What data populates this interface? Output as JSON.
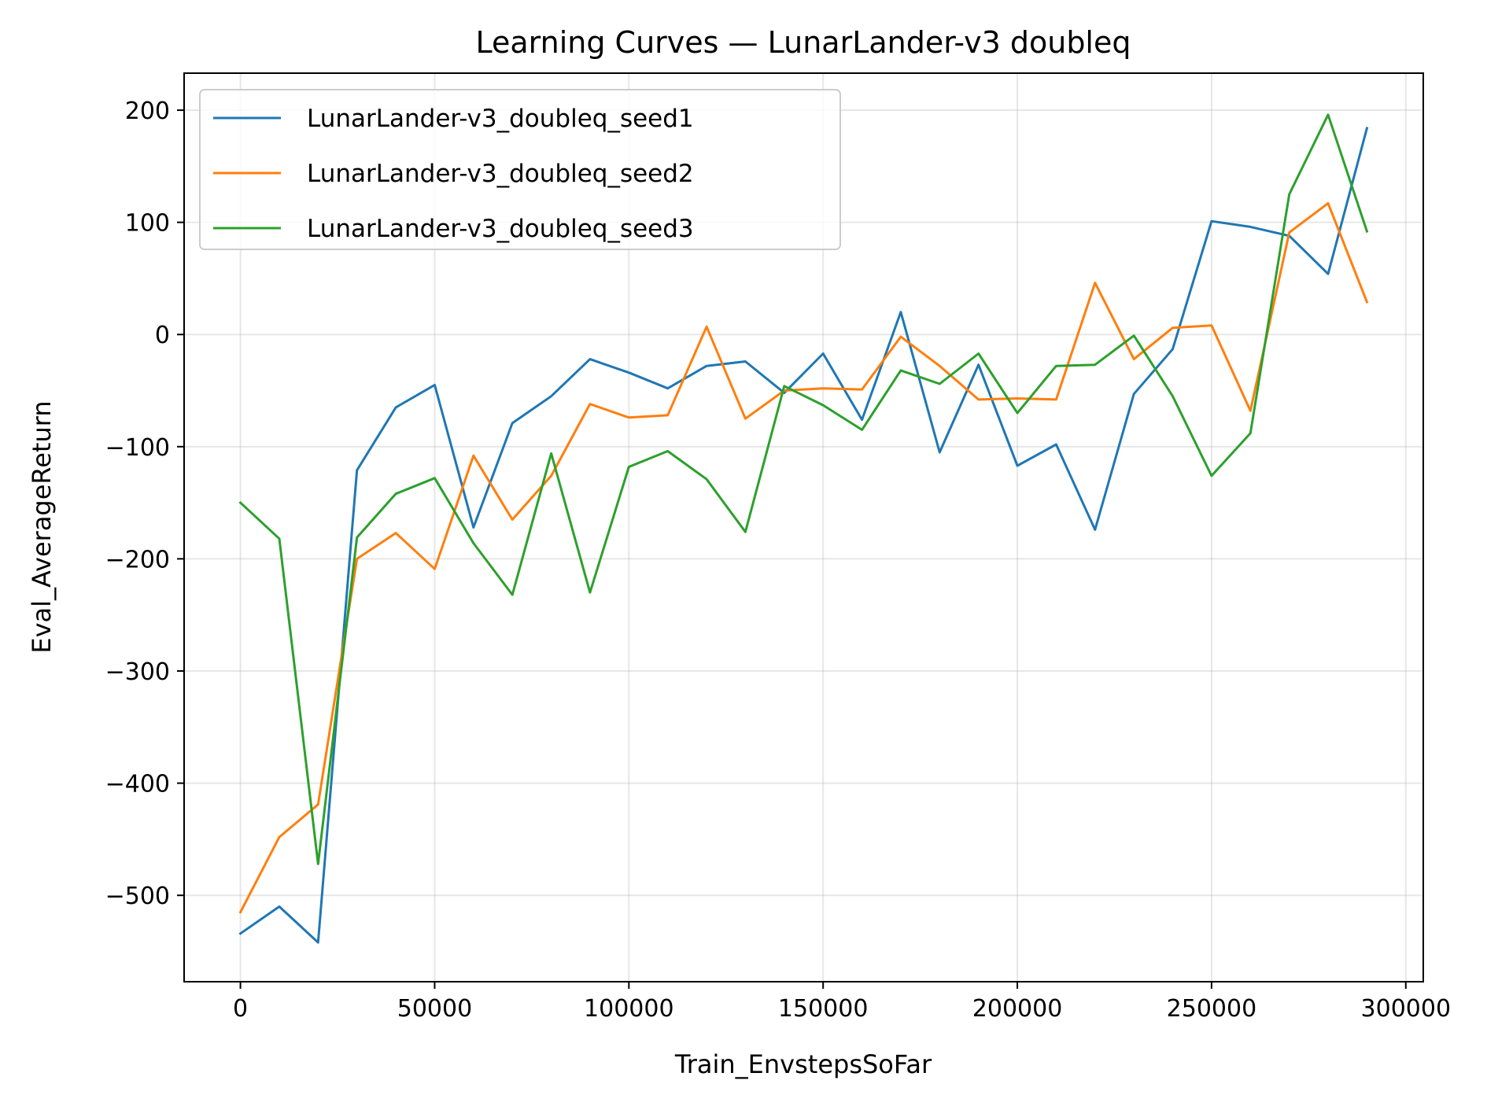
{
  "chart_data": {
    "type": "line",
    "title": "Learning Curves — LunarLander-v3 doubleq",
    "xlabel": "Train_EnvstepsSoFar",
    "ylabel": "Eval_AverageReturn",
    "xlim": [
      -14500,
      304500
    ],
    "ylim": [
      -577,
      233
    ],
    "xticks": [
      0,
      50000,
      100000,
      150000,
      200000,
      250000,
      300000
    ],
    "xtick_labels": [
      "0",
      "50000",
      "100000",
      "150000",
      "200000",
      "250000",
      "300000"
    ],
    "yticks": [
      -500,
      -400,
      -300,
      -200,
      -100,
      0,
      100,
      200
    ],
    "ytick_labels": [
      "−500",
      "−400",
      "−300",
      "−200",
      "−100",
      "0",
      "100",
      "200"
    ],
    "grid": true,
    "legend_position": "top-left",
    "x": [
      0,
      10000,
      20000,
      30000,
      40000,
      50000,
      60000,
      70000,
      80000,
      90000,
      100000,
      110000,
      120000,
      130000,
      140000,
      150000,
      160000,
      170000,
      180000,
      190000,
      200000,
      210000,
      220000,
      230000,
      240000,
      250000,
      260000,
      270000,
      280000,
      290000
    ],
    "series": [
      {
        "name": "LunarLander-v3_doubleq_seed1",
        "color": "#1f77b4",
        "values": [
          -534,
          -510,
          -542,
          -121,
          -65,
          -45,
          -172,
          -79,
          -55,
          -22,
          -34,
          -48,
          -28,
          -24,
          -52,
          -17,
          -76,
          20,
          -105,
          -27,
          -117,
          -98,
          -174,
          -53,
          -13,
          101,
          96,
          88,
          54,
          184
        ]
      },
      {
        "name": "LunarLander-v3_doubleq_seed2",
        "color": "#ff7f0e",
        "values": [
          -515,
          -448,
          -419,
          -200,
          -177,
          -209,
          -108,
          -165,
          -126,
          -62,
          -74,
          -72,
          7,
          -75,
          -50,
          -48,
          -49,
          -2,
          -28,
          -58,
          -57,
          -58,
          46,
          -22,
          6,
          8,
          -68,
          91,
          117,
          29
        ]
      },
      {
        "name": "LunarLander-v3_doubleq_seed3",
        "color": "#2ca02c",
        "values": [
          -150,
          -182,
          -472,
          -181,
          -142,
          -128,
          -186,
          -232,
          -106,
          -230,
          -118,
          -104,
          -129,
          -176,
          -46,
          -63,
          -85,
          -32,
          -44,
          -17,
          -70,
          -28,
          -27,
          -1,
          -55,
          -126,
          -88,
          125,
          196,
          92
        ]
      }
    ]
  }
}
